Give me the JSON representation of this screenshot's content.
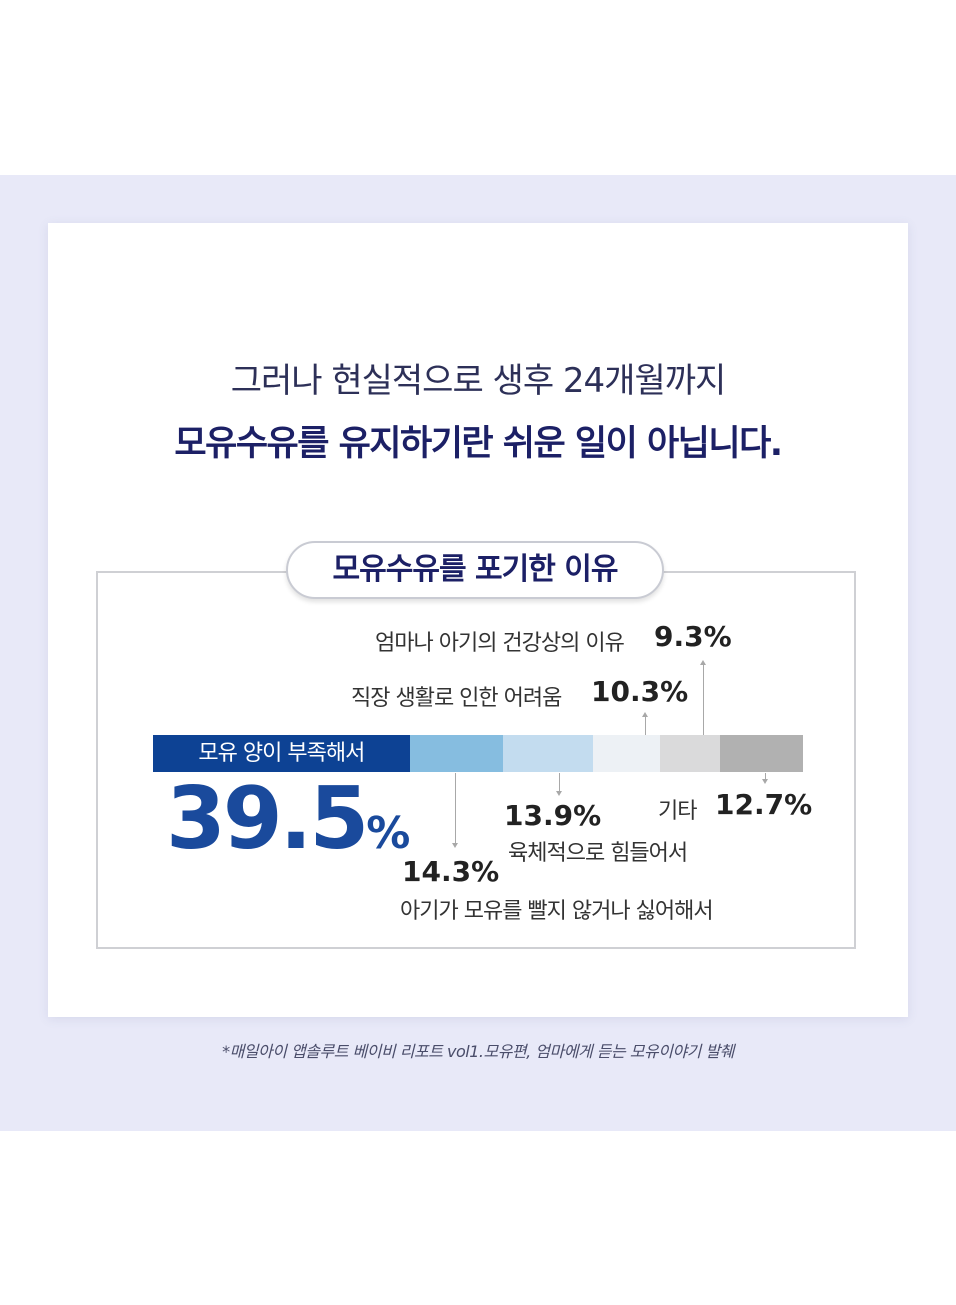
{
  "headline": {
    "line1": "그러나 현실적으로 생후 24개월까지",
    "line2": "모유수유를 유지하기란 쉬운 일이 아닙니다."
  },
  "section_title": "모유수유를 포기한 이유",
  "chart_data": {
    "type": "bar",
    "orientation": "horizontal-stacked",
    "categories": [
      "모유 양이 부족해서",
      "아기가 모유를 빨지 않거나 싫어해서",
      "육체적으로 힘들어서",
      "직장 생활로 인한 어려움",
      "엄마나 아기의 건강상의 이유",
      "기타"
    ],
    "values": [
      39.5,
      14.3,
      13.9,
      10.3,
      9.3,
      12.7
    ],
    "value_labels": [
      "39.5%",
      "14.3%",
      "13.9%",
      "10.3%",
      "9.3%",
      "12.7%"
    ],
    "colors": [
      "#0d4294",
      "#86bde0",
      "#c3dcef",
      "#edf1f5",
      "#dadadb",
      "#b1b1b1"
    ],
    "unit": "%"
  },
  "source": "*매일아이  앱솔루트 베이비 리포트 vol1.모유편, 엄마에게 듣는 모유이야기 발췌"
}
